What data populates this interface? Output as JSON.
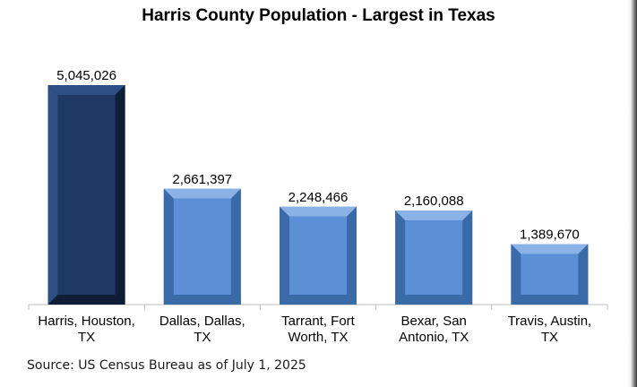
{
  "chart_data": {
    "type": "bar",
    "title": "Harris County Population - Largest in Texas",
    "categories": [
      [
        "Harris, Houston,",
        "TX"
      ],
      [
        "Dallas, Dallas,",
        "TX"
      ],
      [
        "Tarrant, Fort",
        "Worth, TX"
      ],
      [
        "Bexar, San",
        "Antonio, TX"
      ],
      [
        "Travis, Austin,",
        "TX"
      ]
    ],
    "values": [
      5045026,
      2661397,
      2248466,
      2160088,
      1389670
    ],
    "value_labels": [
      "5,045,026",
      "2,661,397",
      "2,248,466",
      "2,160,088",
      "1,389,670"
    ],
    "xlabel": "",
    "ylabel": "",
    "ylim": [
      0,
      5500000
    ],
    "grid": false,
    "legend": "none",
    "colors": {
      "highlight": "#1f3864",
      "highlight_dark": "#0f1d36",
      "highlight_light": "#2d4f86",
      "bar": "#5b8fd6",
      "bar_dark": "#3a6aa8",
      "bar_light": "#8ab2e6",
      "axis": "#bfbfbf"
    }
  },
  "source_note": "Source: US Census Bureau as of July 1, 2025"
}
